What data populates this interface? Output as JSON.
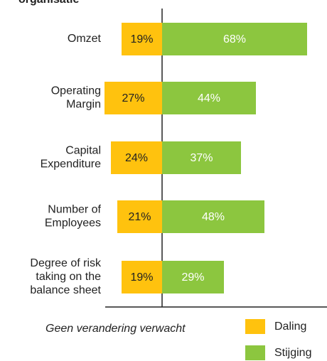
{
  "chart_data": {
    "type": "diverging-bar",
    "title": "organisatie",
    "categories": [
      [
        "Omzet"
      ],
      [
        "Operating",
        "Margin"
      ],
      [
        "Capital",
        "Expenditure"
      ],
      [
        "Number of",
        "Employees"
      ],
      [
        "Degree of risk",
        "taking on the",
        "balance sheet"
      ]
    ],
    "series": [
      {
        "name": "Daling",
        "color": "#ffc20e",
        "values": [
          19,
          27,
          24,
          21,
          19
        ],
        "value_labels": [
          "19%",
          "27%",
          "24%",
          "21%",
          "19%"
        ]
      },
      {
        "name": "Stijging",
        "color": "#8cc63f",
        "values": [
          68,
          44,
          37,
          48,
          29
        ],
        "value_labels": [
          "68%",
          "44%",
          "37%",
          "48%",
          "29%"
        ]
      }
    ],
    "annotation": "Geen verandering verwacht"
  }
}
